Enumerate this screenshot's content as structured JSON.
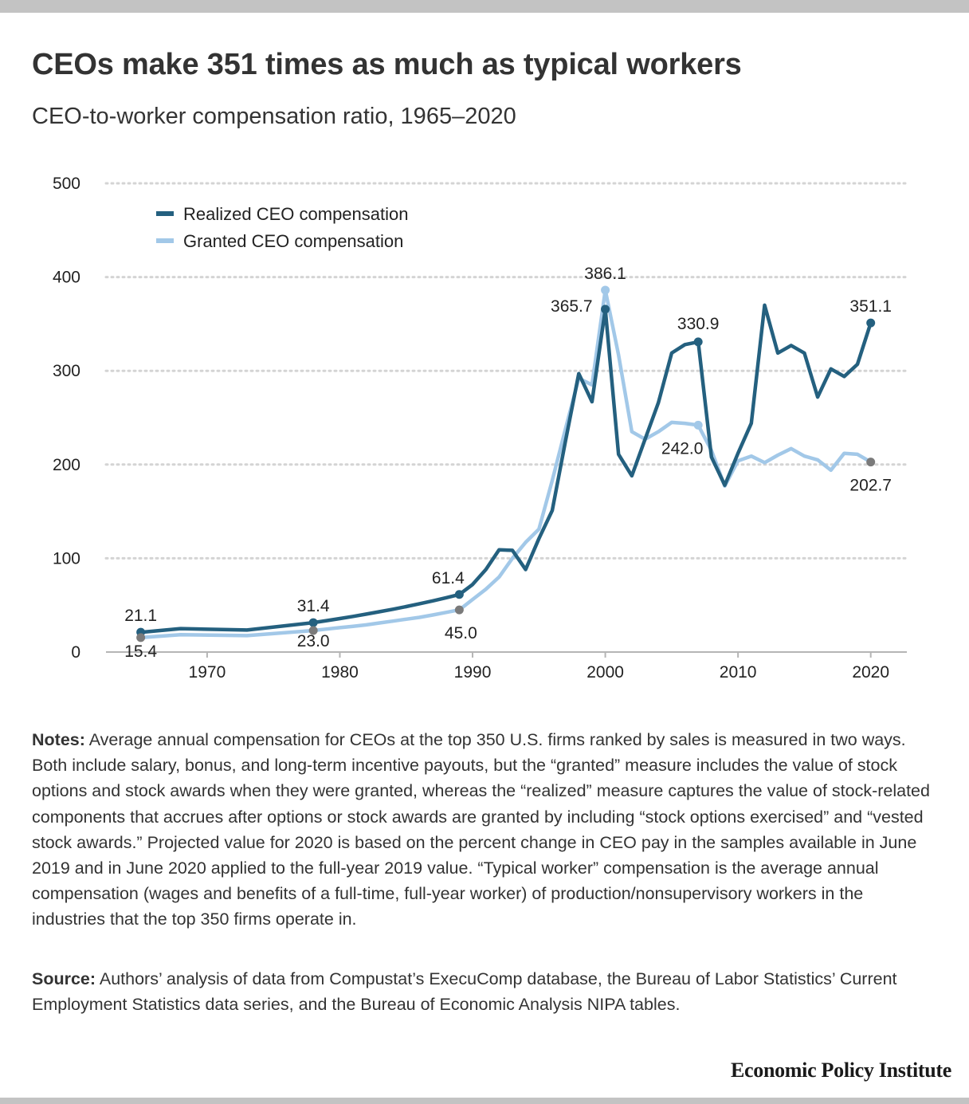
{
  "title": "CEOs make 351 times as much as typical workers",
  "subtitle": "CEO-to-worker compensation ratio, 1965–2020",
  "notes": {
    "label": "Notes:",
    "text": "Average annual compensation for CEOs at the top 350 U.S. firms ranked by sales is measured in two ways. Both include salary, bonus, and long-term incentive payouts, but the “granted” measure includes the value of stock options and stock awards when they were granted, whereas the “realized” measure captures the value of stock-related components that accrues after options or stock awards are granted by including “stock options exercised” and “vested stock awards.” Projected value for 2020 is based on the percent change in CEO pay in the samples available in June 2019 and in June 2020 applied to the full-year 2019 value. “Typical worker” compensation is the average annual compensation (wages and benefits of a full-time, full-year worker) of production/nonsupervisory workers in the industries that the top 350 firms operate in."
  },
  "source": {
    "label": "Source:",
    "text": "Authors’ analysis of data from Compustat’s ExecuComp database, the Bureau of Labor Statistics’ Current Employment Statistics data series, and the Bureau of Economic Analysis NIPA tables."
  },
  "brand": "Economic Policy Institute",
  "chart_data": {
    "type": "line",
    "title": "CEOs make 351 times as much as typical workers",
    "subtitle": "CEO-to-worker compensation ratio, 1965–2020",
    "xlim": [
      1962.2,
      2022.6
    ],
    "ylim": [
      0,
      500
    ],
    "y_ticks": [
      "0",
      "100",
      "200",
      "300",
      "400",
      "500"
    ],
    "y_tick_values": [
      0,
      100,
      200,
      300,
      400,
      500
    ],
    "x_ticks": [
      "1970",
      "1980",
      "1990",
      "2000",
      "2010",
      "2020"
    ],
    "x_tick_values": [
      1970,
      1980,
      1990,
      2000,
      2010,
      2020
    ],
    "grid": "horizontal dotted",
    "legend_position": "top-left",
    "series": [
      {
        "name": "Realized CEO compensation",
        "color": "#24607f",
        "x": [
          1965,
          1968,
          1973,
          1978,
          1979,
          1980,
          1981,
          1982,
          1983,
          1984,
          1985,
          1986,
          1987,
          1988,
          1989,
          1990,
          1991,
          1992,
          1993,
          1994,
          1995,
          1996,
          1997,
          1998,
          1999,
          2000,
          2001,
          2002,
          2003,
          2004,
          2005,
          2006,
          2007,
          2008,
          2009,
          2010,
          2011,
          2012,
          2013,
          2014,
          2015,
          2016,
          2017,
          2018,
          2019,
          2020
        ],
        "y": [
          21.1,
          25,
          23.5,
          31.4,
          33.5,
          35.7,
          38,
          40.5,
          43,
          45.7,
          48.5,
          51.5,
          54.6,
          57.9,
          61.4,
          72,
          88,
          109,
          108.5,
          88,
          121,
          151,
          225,
          297,
          267,
          365.7,
          211,
          188,
          227,
          266,
          319,
          328,
          330.9,
          208,
          178,
          212,
          244,
          370,
          319,
          327,
          319,
          272,
          302,
          294,
          307,
          351.1
        ]
      },
      {
        "name": "Granted CEO compensation",
        "color": "#a2c8e8",
        "x": [
          1965,
          1968,
          1973,
          1978,
          1979,
          1980,
          1981,
          1982,
          1983,
          1984,
          1985,
          1986,
          1987,
          1988,
          1989,
          1990,
          1991,
          1992,
          1993,
          1994,
          1995,
          1996,
          1997,
          1998,
          1999,
          2000,
          2001,
          2002,
          2003,
          2004,
          2005,
          2006,
          2007,
          2008,
          2009,
          2010,
          2011,
          2012,
          2013,
          2014,
          2015,
          2016,
          2017,
          2018,
          2019,
          2020
        ],
        "y": [
          15.4,
          18.5,
          17.5,
          23,
          24.5,
          26,
          27.5,
          29,
          31,
          33,
          35,
          37,
          39.5,
          42.3,
          45,
          56,
          67,
          80,
          100,
          117,
          131,
          183,
          238,
          292,
          285,
          386.1,
          317,
          235,
          227,
          235,
          245,
          244,
          242,
          215,
          177,
          204,
          209,
          202,
          210,
          217,
          209,
          205,
          194,
          212,
          211,
          202.7
        ]
      }
    ],
    "annotations": [
      {
        "series": 0,
        "x": 1965,
        "value": 21.1,
        "label": "21.1"
      },
      {
        "series": 1,
        "x": 1965,
        "value": 15.4,
        "label": "15.4"
      },
      {
        "series": 0,
        "x": 1978,
        "value": 31.4,
        "label": "31.4"
      },
      {
        "series": 1,
        "x": 1978,
        "value": 23.0,
        "label": "23.0"
      },
      {
        "series": 0,
        "x": 1989,
        "value": 61.4,
        "label": "61.4"
      },
      {
        "series": 1,
        "x": 1989,
        "value": 45.0,
        "label": "45.0"
      },
      {
        "series": 0,
        "x": 2000,
        "value": 365.7,
        "label": "365.7"
      },
      {
        "series": 1,
        "x": 2000,
        "value": 386.1,
        "label": "386.1"
      },
      {
        "series": 0,
        "x": 2007,
        "value": 330.9,
        "label": "330.9"
      },
      {
        "series": 1,
        "x": 2007,
        "value": 242.0,
        "label": "242.0"
      },
      {
        "series": 0,
        "x": 2020,
        "value": 351.1,
        "label": "351.1"
      },
      {
        "series": 1,
        "x": 2020,
        "value": 202.7,
        "label": "202.7"
      }
    ]
  }
}
